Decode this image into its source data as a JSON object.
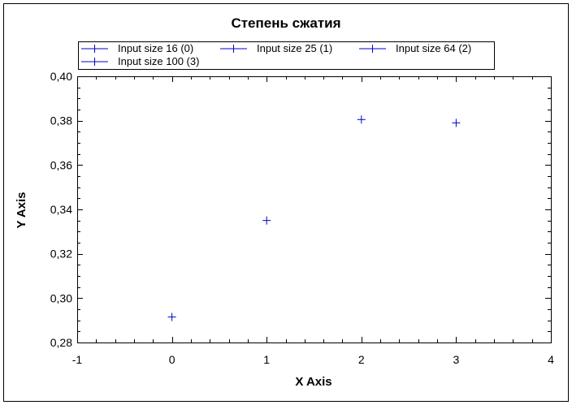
{
  "chart_data": {
    "type": "scatter",
    "title": "Степень сжатия",
    "xlabel": "X Axis",
    "ylabel": "Y Axis",
    "xlim": [
      -1,
      4
    ],
    "ylim": [
      0.28,
      0.4
    ],
    "x_ticks": [
      "-1",
      "0",
      "1",
      "2",
      "3",
      "4"
    ],
    "y_ticks": [
      "0,28",
      "0,30",
      "0,32",
      "0,34",
      "0,36",
      "0,38",
      "0,40"
    ],
    "grid": false,
    "legend_position": "top",
    "marker_color": "#0000cc",
    "series": [
      {
        "name": "Input size 16 (0)",
        "x": [
          0
        ],
        "y": [
          0.2915
        ]
      },
      {
        "name": "Input size 25 (1)",
        "x": [
          1
        ],
        "y": [
          0.335
        ]
      },
      {
        "name": "Input size 64 (2)",
        "x": [
          2
        ],
        "y": [
          0.3805
        ]
      },
      {
        "name": "Input size 100 (3)",
        "x": [
          3
        ],
        "y": [
          0.379
        ]
      }
    ]
  }
}
